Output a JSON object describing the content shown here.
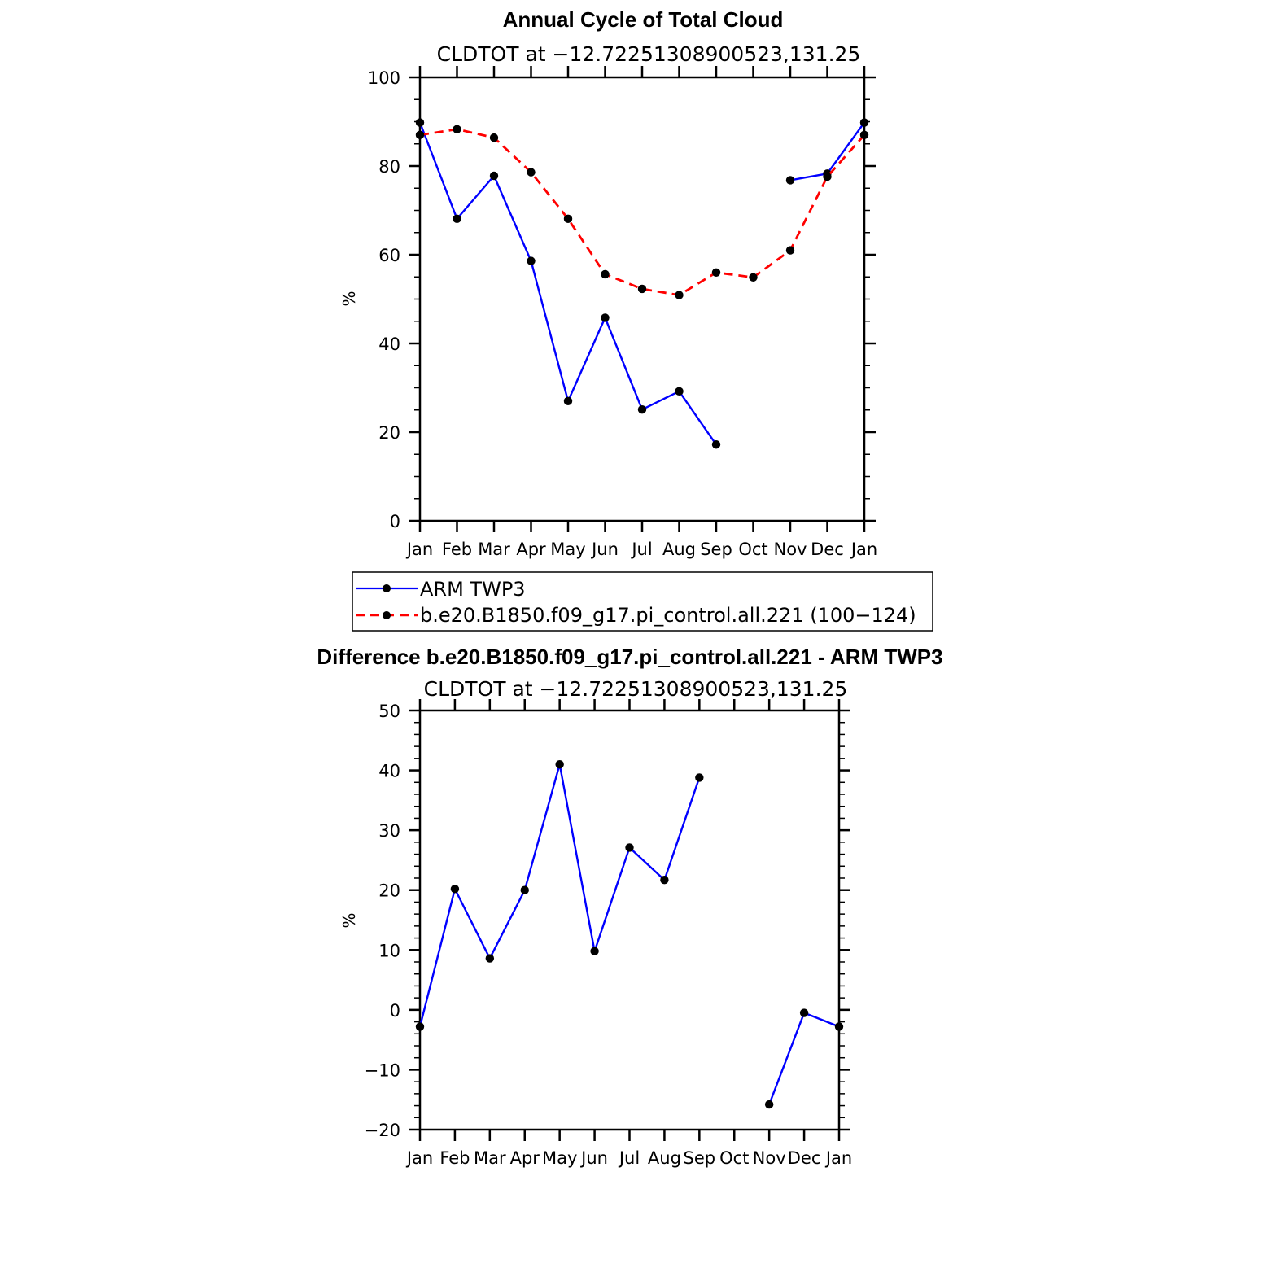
{
  "chart_data": [
    {
      "type": "line",
      "title": "Annual Cycle of Total Cloud",
      "subtitle": "CLDTOT at −12.72251308900523,131.25",
      "ylabel": "%",
      "ylim": [
        0,
        100
      ],
      "yticks": [
        "0",
        "20",
        "40",
        "60",
        "80",
        "100"
      ],
      "categories": [
        "Jan",
        "Feb",
        "Mar",
        "Apr",
        "May",
        "Jun",
        "Jul",
        "Aug",
        "Sep",
        "Oct",
        "Nov",
        "Dec",
        "Jan"
      ],
      "series": [
        {
          "name": "ARM TWP3",
          "color": "#0000ff",
          "dash": "solid",
          "values": [
            89.8,
            68.1,
            77.8,
            58.6,
            27.0,
            45.8,
            25.1,
            29.2,
            17.2,
            null,
            76.8,
            78.3,
            89.8
          ]
        },
        {
          "name": "b.e20.B1850.f09_g17.pi_control.all.221 (100−124)",
          "color": "#ff0000",
          "dash": "dashed",
          "values": [
            87.0,
            88.3,
            86.4,
            78.6,
            68.1,
            55.6,
            52.3,
            50.9,
            56.0,
            54.9,
            61.0,
            77.6,
            87.0
          ]
        }
      ],
      "legend": "below"
    },
    {
      "type": "line",
      "title": "Difference b.e20.B1850.f09_g17.pi_control.all.221 - ARM TWP3",
      "subtitle": "CLDTOT at −12.72251308900523,131.25",
      "ylabel": "%",
      "ylim": [
        -20,
        50
      ],
      "yticks": [
        "−20",
        "−10",
        "0",
        "10",
        "20",
        "30",
        "40",
        "50"
      ],
      "categories": [
        "Jan",
        "Feb",
        "Mar",
        "Apr",
        "May",
        "Jun",
        "Jul",
        "Aug",
        "Sep",
        "Oct",
        "Nov",
        "Dec",
        "Jan"
      ],
      "series": [
        {
          "color": "#0000ff",
          "dash": "solid",
          "values": [
            -2.8,
            20.2,
            8.6,
            20.0,
            41.0,
            9.8,
            27.1,
            21.7,
            38.8,
            null,
            -15.8,
            -0.5,
            -2.8
          ]
        }
      ]
    }
  ]
}
